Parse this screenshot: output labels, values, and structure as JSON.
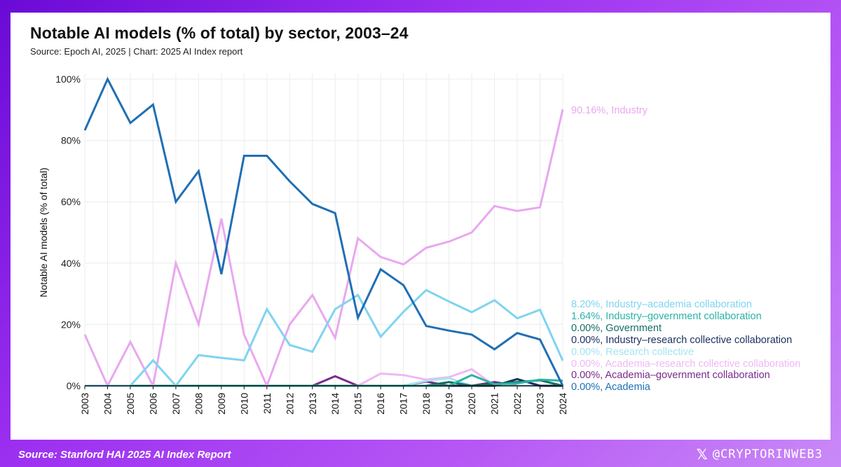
{
  "chart_data": {
    "type": "line",
    "title": "Notable AI models (% of total) by sector, 2003–24",
    "subtitle": "Source: Epoch AI, 2025 | Chart: 2025 AI Index report",
    "ylabel": "Notable AI models (% of total)",
    "xlabel": "",
    "ylim": [
      0,
      100
    ],
    "yticks": [
      0,
      20,
      40,
      60,
      80,
      100
    ],
    "ytick_labels": [
      "0%",
      "20%",
      "40%",
      "60%",
      "80%",
      "100%"
    ],
    "x": [
      "2003",
      "2004",
      "2005",
      "2006",
      "2007",
      "2008",
      "2009",
      "2010",
      "2011",
      "2012",
      "2013",
      "2014",
      "2015",
      "2016",
      "2017",
      "2018",
      "2019",
      "2020",
      "2021",
      "2022",
      "2023",
      "2024"
    ],
    "grid": true,
    "series": [
      {
        "name": "Industry",
        "color": "#e9a8f0",
        "label": "90.16%, Industry",
        "values": [
          16.7,
          0,
          14.3,
          0,
          40,
          20,
          54.5,
          16.7,
          0,
          20,
          29.6,
          15.6,
          48.1,
          42,
          39.6,
          45,
          47,
          50,
          58.6,
          57,
          58.2,
          90.16
        ]
      },
      {
        "name": "Academia",
        "color": "#1f6fb5",
        "label": "0.00%, Academia",
        "values": [
          83.3,
          100,
          85.7,
          91.7,
          60,
          70,
          36.4,
          75,
          75,
          66.7,
          59.3,
          56.3,
          22.2,
          38,
          32.8,
          19.5,
          18,
          16.7,
          11.9,
          17.2,
          15.1,
          0
        ]
      },
      {
        "name": "Industry–academia collaboration",
        "color": "#7fd4f0",
        "label": "8.20%, Industry–academia collaboration",
        "values": [
          0,
          0,
          0,
          8.3,
          0,
          10,
          9.1,
          8.3,
          25,
          13.3,
          11.1,
          25,
          29.6,
          16,
          24.1,
          31.2,
          27.5,
          24,
          27.9,
          22,
          24.8,
          8.2
        ]
      },
      {
        "name": "Industry–government collaboration",
        "color": "#2ab3a6",
        "label": "1.64%, Industry–government collaboration",
        "values": [
          0,
          0,
          0,
          0,
          0,
          0,
          0,
          0,
          0,
          0,
          0,
          0,
          0,
          0,
          0,
          0,
          0,
          3.5,
          0.5,
          0.8,
          2.0,
          1.64
        ]
      },
      {
        "name": "Government",
        "color": "#136f63",
        "label": "0.00%, Government",
        "values": [
          0,
          0,
          0,
          0,
          0,
          0,
          0,
          0,
          0,
          0,
          0,
          0,
          0,
          0,
          0,
          0,
          1.2,
          0,
          0.6,
          1.2,
          1.8,
          0
        ]
      },
      {
        "name": "Industry–research collective collaboration",
        "color": "#1b2f5e",
        "label": "0.00%, Industry–research collective collaboration",
        "values": [
          0,
          0,
          0,
          0,
          0,
          0,
          0,
          0,
          0,
          0,
          0,
          0,
          0,
          0,
          0,
          0,
          0,
          0,
          0,
          2.2,
          0,
          0
        ]
      },
      {
        "name": "Research collective",
        "color": "#a6e4f0",
        "label": "0.00%, Research collective",
        "values": [
          0,
          0,
          0,
          0,
          0,
          0,
          0,
          0,
          0,
          0,
          0,
          0,
          0,
          0,
          0,
          1.6,
          2.5,
          0,
          0,
          0,
          0,
          0
        ]
      },
      {
        "name": "Academia–research collective collaboration",
        "color": "#f0b8f4",
        "label": "0.00%, Academia–research collective collaboration",
        "values": [
          0,
          0,
          0,
          0,
          0,
          0,
          0,
          0,
          0,
          0,
          0,
          0,
          0,
          4,
          3.5,
          2,
          2.8,
          5.4,
          0,
          0,
          0,
          0
        ]
      },
      {
        "name": "Academia–government collaboration",
        "color": "#7a2a8a",
        "label": "0.00%, Academia–government collaboration",
        "values": [
          0,
          0,
          0,
          0,
          0,
          0,
          0,
          0,
          0,
          0,
          0,
          3.1,
          0,
          0,
          0,
          1.4,
          0,
          0,
          1.2,
          0,
          0,
          0
        ]
      }
    ],
    "series_draw_order": [
      8,
      7,
      6,
      5,
      4,
      3,
      0,
      2,
      1
    ]
  },
  "footer": {
    "source": "Source: Stanford HAI 2025 AI Index Report",
    "handle": "@CRYPTORINWEB3",
    "x_icon_glyph": "𝕏"
  }
}
